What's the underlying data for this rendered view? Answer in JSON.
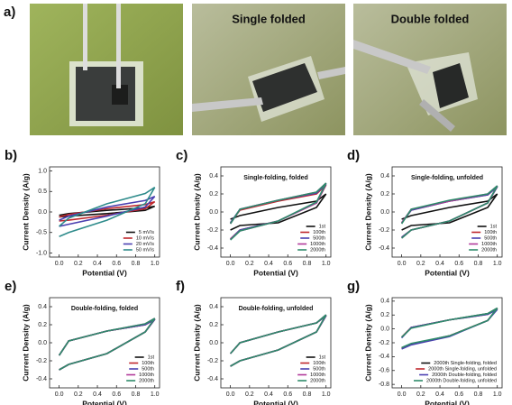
{
  "photos": {
    "label": "a)",
    "captions": [
      "Single folded",
      "Double folded"
    ]
  },
  "chart_data": [
    {
      "type": "line",
      "panel": "b)",
      "ylabel": "Current Density (A/g)",
      "xlabel": "Potential (V)",
      "legend": "lower right",
      "x": [
        0,
        0.1,
        0.5,
        0.9,
        1,
        0.9,
        0.5,
        0.1,
        0
      ],
      "xlim": [
        -0.1,
        1.05
      ],
      "xticks": [
        {
          "value": 0,
          "label": "0.0"
        },
        0.2,
        0.4,
        0.6,
        0.8,
        {
          "value": 1,
          "label": "1.0"
        }
      ],
      "ylim": [
        -1.1,
        1.1
      ],
      "yticks": [
        {
          "value": -1,
          "label": "-1.0"
        },
        -0.5,
        {
          "value": 0,
          "label": "0.0"
        },
        0.5,
        {
          "value": 1,
          "label": "1.0"
        }
      ],
      "series": [
        {
          "name": "5 mV/s",
          "color": "#111111",
          "values": [
            -0.08,
            -0.04,
            0.04,
            0.1,
            0.14,
            0.04,
            -0.04,
            -0.1,
            -0.12
          ]
        },
        {
          "name": "10 mV/s",
          "color": "#c0282d",
          "values": [
            -0.12,
            -0.06,
            0.08,
            0.18,
            0.25,
            0.08,
            -0.08,
            -0.2,
            -0.22
          ]
        },
        {
          "name": "20 mV/s",
          "color": "#4a3fb0",
          "values": [
            -0.2,
            -0.1,
            0.12,
            0.28,
            0.38,
            0.12,
            -0.1,
            -0.3,
            -0.35
          ]
        },
        {
          "name": "50 mV/s",
          "color": "#2e8b8b",
          "values": [
            -0.35,
            -0.15,
            0.2,
            0.45,
            0.6,
            0.2,
            -0.2,
            -0.5,
            -0.6
          ]
        }
      ]
    },
    {
      "type": "line",
      "panel": "c)",
      "title": "Single-folding, folded",
      "ylabel": "Current Density (A/g)",
      "xlabel": "Potential (V)",
      "legend": "lower right",
      "x": [
        0,
        0.1,
        0.5,
        0.9,
        1,
        0.9,
        0.5,
        0.1,
        0
      ],
      "xlim": [
        -0.1,
        1.05
      ],
      "xticks": [
        {
          "value": 0,
          "label": "0.0"
        },
        0.2,
        0.4,
        0.6,
        0.8,
        {
          "value": 1,
          "label": "1.0"
        }
      ],
      "ylim": [
        -0.5,
        0.5
      ],
      "yticks": [
        -0.4,
        -0.2,
        {
          "value": 0,
          "label": "0.0"
        },
        0.2,
        0.4
      ],
      "series": [
        {
          "name": "1st",
          "color": "#111111",
          "values": [
            -0.08,
            -0.04,
            0.05,
            0.12,
            0.2,
            0.05,
            -0.12,
            -0.15,
            -0.2
          ]
        },
        {
          "name": "100th",
          "color": "#c0282d",
          "values": [
            -0.12,
            0.02,
            0.12,
            0.2,
            0.3,
            0.1,
            -0.1,
            -0.2,
            -0.3
          ]
        },
        {
          "name": "500th",
          "color": "#4a3fb0",
          "values": [
            -0.12,
            0.03,
            0.13,
            0.21,
            0.31,
            0.1,
            -0.1,
            -0.2,
            -0.3
          ]
        },
        {
          "name": "1000th",
          "color": "#b03a9a",
          "values": [
            -0.13,
            0.03,
            0.13,
            0.22,
            0.32,
            0.1,
            -0.1,
            -0.21,
            -0.3
          ]
        },
        {
          "name": "2000th",
          "color": "#2e8b6b",
          "values": [
            -0.13,
            0.03,
            0.13,
            0.22,
            0.32,
            0.11,
            -0.1,
            -0.21,
            -0.31
          ]
        }
      ]
    },
    {
      "type": "line",
      "panel": "d)",
      "title": "Single-folding, unfolded",
      "ylabel": "Current Density (A/g)",
      "xlabel": "Potential (V)",
      "legend": "lower right",
      "x": [
        0,
        0.1,
        0.5,
        0.9,
        1,
        0.9,
        0.5,
        0.1,
        0
      ],
      "xlim": [
        -0.1,
        1.05
      ],
      "xticks": [
        {
          "value": 0,
          "label": "0.0"
        },
        0.2,
        0.4,
        0.6,
        0.8,
        {
          "value": 1,
          "label": "1.0"
        }
      ],
      "ylim": [
        -0.5,
        0.5
      ],
      "yticks": [
        -0.4,
        -0.2,
        {
          "value": 0,
          "label": "0.0"
        },
        0.2,
        0.4
      ],
      "series": [
        {
          "name": "1st",
          "color": "#111111",
          "values": [
            -0.08,
            -0.04,
            0.05,
            0.12,
            0.2,
            0.05,
            -0.12,
            -0.15,
            -0.2
          ]
        },
        {
          "name": "100th",
          "color": "#c0282d",
          "values": [
            -0.12,
            0.02,
            0.12,
            0.19,
            0.28,
            0.1,
            -0.1,
            -0.2,
            -0.28
          ]
        },
        {
          "name": "500th",
          "color": "#4a3fb0",
          "values": [
            -0.12,
            0.02,
            0.12,
            0.19,
            0.28,
            0.1,
            -0.1,
            -0.2,
            -0.28
          ]
        },
        {
          "name": "1000th",
          "color": "#b03a9a",
          "values": [
            -0.12,
            0.03,
            0.12,
            0.2,
            0.29,
            0.1,
            -0.1,
            -0.2,
            -0.29
          ]
        },
        {
          "name": "2000th",
          "color": "#2e8b6b",
          "values": [
            -0.13,
            0.03,
            0.13,
            0.2,
            0.29,
            0.1,
            -0.1,
            -0.2,
            -0.29
          ]
        }
      ]
    },
    {
      "type": "line",
      "panel": "e)",
      "title": "Double-folding, folded",
      "ylabel": "Current Density (A/g)",
      "xlabel": "Potential (V)",
      "legend": "lower right",
      "x": [
        0,
        0.1,
        0.5,
        0.9,
        1,
        0.9,
        0.5,
        0.1,
        0
      ],
      "xlim": [
        -0.1,
        1.05
      ],
      "xticks": [
        {
          "value": 0,
          "label": "0.0"
        },
        0.2,
        0.4,
        0.6,
        0.8,
        {
          "value": 1,
          "label": "1.0"
        }
      ],
      "ylim": [
        -0.5,
        0.5
      ],
      "yticks": [
        -0.4,
        -0.2,
        {
          "value": 0,
          "label": "0.0"
        },
        0.2,
        0.4
      ],
      "series": [
        {
          "name": "1st",
          "color": "#111111",
          "values": [
            -0.14,
            0.02,
            0.13,
            0.2,
            0.26,
            0.12,
            -0.12,
            -0.24,
            -0.3
          ]
        },
        {
          "name": "100th",
          "color": "#c0282d",
          "values": [
            -0.14,
            0.02,
            0.13,
            0.2,
            0.26,
            0.12,
            -0.12,
            -0.24,
            -0.3
          ]
        },
        {
          "name": "500th",
          "color": "#4a3fb0",
          "values": [
            -0.14,
            0.02,
            0.13,
            0.2,
            0.26,
            0.12,
            -0.12,
            -0.24,
            -0.3
          ]
        },
        {
          "name": "1000th",
          "color": "#b03a9a",
          "values": [
            -0.14,
            0.02,
            0.13,
            0.21,
            0.27,
            0.12,
            -0.12,
            -0.24,
            -0.3
          ]
        },
        {
          "name": "2000th",
          "color": "#2e8b6b",
          "values": [
            -0.14,
            0.02,
            0.13,
            0.21,
            0.27,
            0.12,
            -0.12,
            -0.24,
            -0.3
          ]
        }
      ]
    },
    {
      "type": "line",
      "panel": "f)",
      "title": "Double-folding, unfolded",
      "ylabel": "Current Density (A/g)",
      "xlabel": "Potential (V)",
      "legend": "lower right",
      "x": [
        0,
        0.1,
        0.5,
        0.9,
        1,
        0.9,
        0.5,
        0.1,
        0
      ],
      "xlim": [
        -0.1,
        1.05
      ],
      "xticks": [
        {
          "value": 0,
          "label": "0.0"
        },
        0.2,
        0.4,
        0.6,
        0.8,
        {
          "value": 1,
          "label": "1.0"
        }
      ],
      "ylim": [
        -0.5,
        0.5
      ],
      "yticks": [
        -0.4,
        -0.2,
        {
          "value": 0,
          "label": "0.0"
        },
        0.2,
        0.4
      ],
      "series": [
        {
          "name": "1st",
          "color": "#111111",
          "values": [
            -0.12,
            0.0,
            0.12,
            0.22,
            0.3,
            0.12,
            -0.08,
            -0.2,
            -0.26
          ]
        },
        {
          "name": "100th",
          "color": "#c0282d",
          "values": [
            -0.12,
            0.0,
            0.12,
            0.22,
            0.3,
            0.12,
            -0.08,
            -0.2,
            -0.26
          ]
        },
        {
          "name": "500th",
          "color": "#4a3fb0",
          "values": [
            -0.12,
            0.0,
            0.12,
            0.22,
            0.3,
            0.12,
            -0.08,
            -0.2,
            -0.26
          ]
        },
        {
          "name": "1000th",
          "color": "#b03a9a",
          "values": [
            -0.12,
            0.0,
            0.12,
            0.22,
            0.31,
            0.12,
            -0.08,
            -0.2,
            -0.26
          ]
        },
        {
          "name": "2000th",
          "color": "#2e8b6b",
          "values": [
            -0.12,
            0.0,
            0.12,
            0.22,
            0.31,
            0.12,
            -0.08,
            -0.2,
            -0.26
          ]
        }
      ]
    },
    {
      "type": "line",
      "panel": "g)",
      "ylabel": "Current Density (A/g)",
      "xlabel": "Potential (V)",
      "legend": "lower right",
      "x": [
        0,
        0.1,
        0.5,
        0.9,
        1,
        0.9,
        0.5,
        0.1,
        0
      ],
      "xlim": [
        -0.1,
        1.05
      ],
      "xticks": [
        {
          "value": 0,
          "label": "0.0"
        },
        0.2,
        0.4,
        0.6,
        0.8,
        {
          "value": 1,
          "label": "1.0"
        }
      ],
      "ylim": [
        -0.85,
        0.45
      ],
      "yticks": [
        -0.8,
        -0.6,
        -0.4,
        -0.2,
        {
          "value": 0,
          "label": "0.0"
        },
        0.2,
        0.4
      ],
      "series": [
        {
          "name": "2000th Single-folding, folded",
          "color": "#111111",
          "values": [
            -0.12,
            0.02,
            0.13,
            0.22,
            0.3,
            0.12,
            -0.1,
            -0.22,
            -0.28
          ]
        },
        {
          "name": "2000th Single-folding, unfolded",
          "color": "#c0282d",
          "values": [
            -0.12,
            0.02,
            0.13,
            0.21,
            0.29,
            0.12,
            -0.1,
            -0.22,
            -0.28
          ]
        },
        {
          "name": "2000th Double-folding, folded",
          "color": "#4a3fb0",
          "values": [
            -0.13,
            0.02,
            0.13,
            0.21,
            0.28,
            0.12,
            -0.11,
            -0.23,
            -0.29
          ]
        },
        {
          "name": "2000th Double-folding, unfolded",
          "color": "#2e8b6b",
          "values": [
            -0.12,
            0.01,
            0.13,
            0.22,
            0.3,
            0.12,
            -0.1,
            -0.21,
            -0.27
          ]
        }
      ]
    }
  ]
}
